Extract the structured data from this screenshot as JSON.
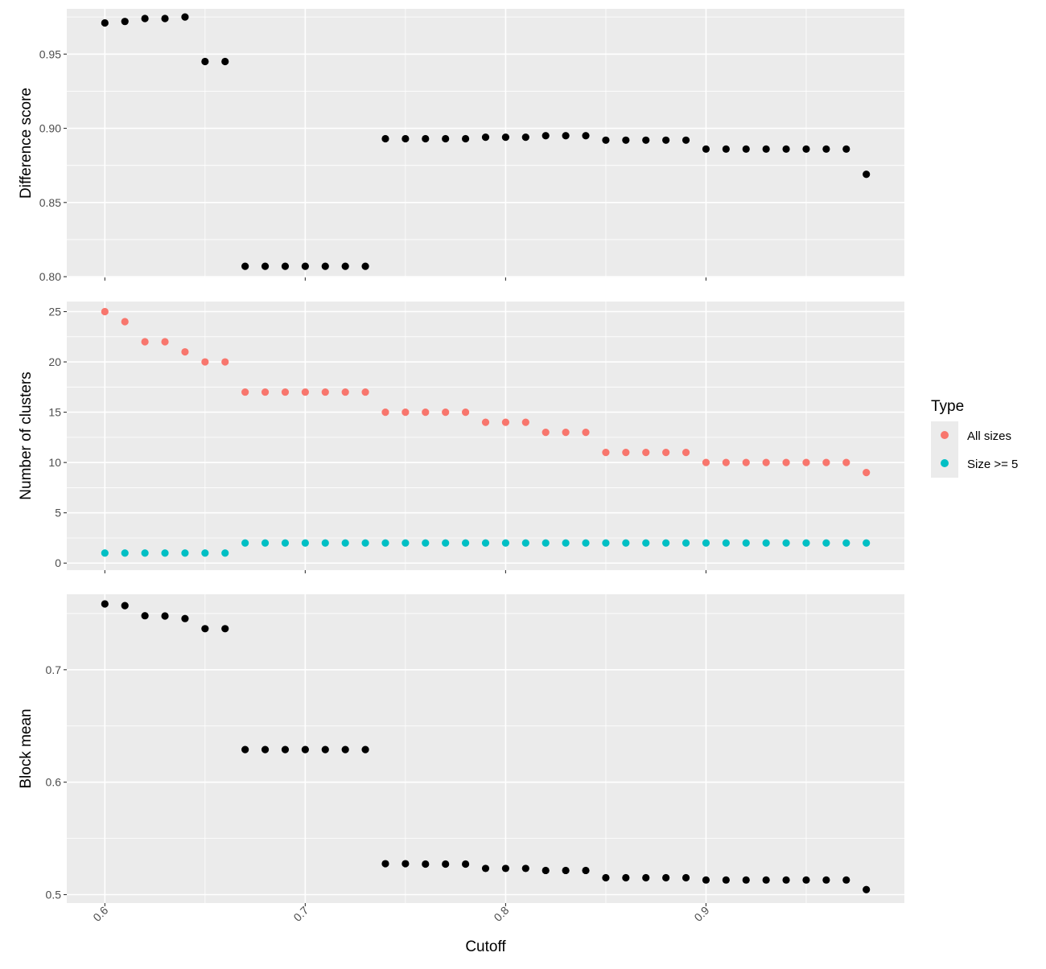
{
  "colors": {
    "panel_bg": "#EBEBEB",
    "grid": "#FFFFFF",
    "point_black": "#000000",
    "all_sizes": "#F8766D",
    "size_ge5": "#00BFC4",
    "tick_text": "#4D4D4D"
  },
  "chart_data": [
    {
      "type": "scatter",
      "ylabel": "Difference score",
      "xlim": [
        0.581,
        0.999
      ],
      "ylim": [
        0.7995,
        0.9805
      ],
      "yticks": [
        0.8,
        0.85,
        0.9,
        0.95
      ],
      "ytick_labels": [
        "0.80",
        "0.85",
        "0.90",
        "0.95"
      ],
      "series": [
        {
          "color": "#000000",
          "x": [
            0.6,
            0.61,
            0.62,
            0.63,
            0.64,
            0.65,
            0.66,
            0.67,
            0.68,
            0.69,
            0.7,
            0.71,
            0.72,
            0.73,
            0.74,
            0.75,
            0.76,
            0.77,
            0.78,
            0.79,
            0.8,
            0.81,
            0.82,
            0.83,
            0.84,
            0.85,
            0.86,
            0.87,
            0.88,
            0.89,
            0.9,
            0.91,
            0.92,
            0.93,
            0.94,
            0.95,
            0.96,
            0.97,
            0.98
          ],
          "y": [
            0.971,
            0.972,
            0.974,
            0.974,
            0.975,
            0.945,
            0.945,
            0.807,
            0.807,
            0.807,
            0.807,
            0.807,
            0.807,
            0.807,
            0.893,
            0.893,
            0.893,
            0.893,
            0.893,
            0.894,
            0.894,
            0.894,
            0.895,
            0.895,
            0.895,
            0.892,
            0.892,
            0.892,
            0.892,
            0.892,
            0.886,
            0.886,
            0.886,
            0.886,
            0.886,
            0.886,
            0.886,
            0.886,
            0.869
          ]
        }
      ]
    },
    {
      "type": "scatter",
      "ylabel": "Number of clusters",
      "xlim": [
        0.581,
        0.999
      ],
      "ylim": [
        -0.7,
        26.0
      ],
      "yticks": [
        0,
        5,
        10,
        15,
        20,
        25
      ],
      "ytick_labels": [
        "0",
        "5",
        "10",
        "15",
        "20",
        "25"
      ],
      "series": [
        {
          "name": "All sizes",
          "color": "#F8766D",
          "x": [
            0.6,
            0.61,
            0.62,
            0.63,
            0.64,
            0.65,
            0.66,
            0.67,
            0.68,
            0.69,
            0.7,
            0.71,
            0.72,
            0.73,
            0.74,
            0.75,
            0.76,
            0.77,
            0.78,
            0.79,
            0.8,
            0.81,
            0.82,
            0.83,
            0.84,
            0.85,
            0.86,
            0.87,
            0.88,
            0.89,
            0.9,
            0.91,
            0.92,
            0.93,
            0.94,
            0.95,
            0.96,
            0.97,
            0.98
          ],
          "y": [
            25,
            24,
            22,
            22,
            21,
            20,
            20,
            17,
            17,
            17,
            17,
            17,
            17,
            17,
            15,
            15,
            15,
            15,
            15,
            14,
            14,
            14,
            13,
            13,
            13,
            11,
            11,
            11,
            11,
            11,
            10,
            10,
            10,
            10,
            10,
            10,
            10,
            10,
            9
          ]
        },
        {
          "name": "Size >= 5",
          "color": "#00BFC4",
          "x": [
            0.6,
            0.61,
            0.62,
            0.63,
            0.64,
            0.65,
            0.66,
            0.67,
            0.68,
            0.69,
            0.7,
            0.71,
            0.72,
            0.73,
            0.74,
            0.75,
            0.76,
            0.77,
            0.78,
            0.79,
            0.8,
            0.81,
            0.82,
            0.83,
            0.84,
            0.85,
            0.86,
            0.87,
            0.88,
            0.89,
            0.9,
            0.91,
            0.92,
            0.93,
            0.94,
            0.95,
            0.96,
            0.97,
            0.98
          ],
          "y": [
            1,
            1,
            1,
            1,
            1,
            1,
            1,
            2,
            2,
            2,
            2,
            2,
            2,
            2,
            2,
            2,
            2,
            2,
            2,
            2,
            2,
            2,
            2,
            2,
            2,
            2,
            2,
            2,
            2,
            2,
            2,
            2,
            2,
            2,
            2,
            2,
            2,
            2,
            2
          ]
        }
      ]
    },
    {
      "type": "scatter",
      "ylabel": "Block mean",
      "xlabel": "Cutoff",
      "xlim": [
        0.581,
        0.999
      ],
      "ylim": [
        0.4925,
        0.7671
      ],
      "xticks": [
        0.6,
        0.7,
        0.8,
        0.9
      ],
      "xtick_labels": [
        "0.6",
        "0.7",
        "0.8",
        "0.9"
      ],
      "yticks": [
        0.5,
        0.6,
        0.7
      ],
      "ytick_labels": [
        "0.5",
        "0.6",
        "0.7"
      ],
      "series": [
        {
          "color": "#000000",
          "x": [
            0.6,
            0.61,
            0.62,
            0.63,
            0.64,
            0.65,
            0.66,
            0.67,
            0.68,
            0.69,
            0.7,
            0.71,
            0.72,
            0.73,
            0.74,
            0.75,
            0.76,
            0.77,
            0.78,
            0.79,
            0.8,
            0.81,
            0.82,
            0.83,
            0.84,
            0.85,
            0.86,
            0.87,
            0.88,
            0.89,
            0.9,
            0.91,
            0.92,
            0.93,
            0.94,
            0.95,
            0.96,
            0.97,
            0.98
          ],
          "y": [
            0.7585,
            0.757,
            0.748,
            0.7478,
            0.7455,
            0.7365,
            0.7365,
            0.629,
            0.629,
            0.629,
            0.629,
            0.629,
            0.629,
            0.629,
            0.5275,
            0.5275,
            0.5272,
            0.5272,
            0.5272,
            0.5233,
            0.5233,
            0.5233,
            0.5215,
            0.5215,
            0.5215,
            0.515,
            0.515,
            0.515,
            0.515,
            0.515,
            0.513,
            0.513,
            0.513,
            0.513,
            0.513,
            0.513,
            0.513,
            0.513,
            0.5045
          ]
        }
      ]
    }
  ],
  "legend": {
    "title": "Type",
    "items": [
      {
        "label": "All sizes",
        "color": "#F8766D"
      },
      {
        "label": "Size >= 5",
        "color": "#00BFC4"
      }
    ]
  }
}
